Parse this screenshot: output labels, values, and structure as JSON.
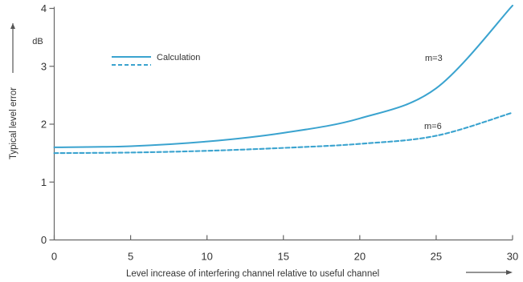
{
  "chart_data": {
    "type": "line",
    "xlabel": "Level increase of interfering channel relative to useful channel",
    "ylabel": "Typical level error",
    "yunit": "dB",
    "xlim": [
      0,
      30
    ],
    "ylim": [
      0,
      4
    ],
    "xticks": [
      "0",
      "5",
      "10",
      "15",
      "20",
      "25",
      "30"
    ],
    "yticks": [
      "0",
      "1",
      "2",
      "3",
      "4"
    ],
    "legend": {
      "entries": [
        {
          "label": "Calculation",
          "style": "solid"
        },
        {
          "label": "",
          "style": "dashed"
        }
      ],
      "placement": "upper-left"
    },
    "series": [
      {
        "name": "m=3",
        "color": "#3aa3cf",
        "style": "solid",
        "x": [
          0,
          5,
          10,
          15,
          20,
          25,
          30
        ],
        "y": [
          1.6,
          1.62,
          1.7,
          1.85,
          2.1,
          2.62,
          4.05
        ]
      },
      {
        "name": "m=6",
        "color": "#3aa3cf",
        "style": "dashed",
        "x": [
          0,
          5,
          10,
          15,
          20,
          25,
          30
        ],
        "y": [
          1.5,
          1.51,
          1.54,
          1.59,
          1.66,
          1.8,
          2.2
        ]
      }
    ],
    "grid": false
  }
}
